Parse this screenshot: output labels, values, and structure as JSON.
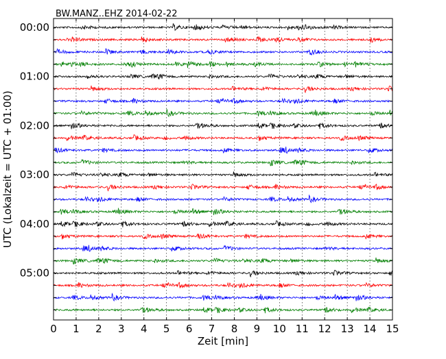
{
  "chart_data": {
    "type": "line",
    "title": "BW.MANZ..EHZ 2014-02-22",
    "xlabel": "Zeit  [min]",
    "ylabel": "UTC (Lokalzeit = UTC + 01:00)",
    "xlim": [
      0,
      15
    ],
    "x_ticks": [
      0,
      1,
      2,
      3,
      4,
      5,
      6,
      7,
      8,
      9,
      10,
      11,
      12,
      13,
      14,
      15
    ],
    "x_tick_labels": [
      "0",
      "1",
      "2",
      "3",
      "4",
      "5",
      "6",
      "7",
      "8",
      "9",
      "10",
      "11",
      "12",
      "13",
      "14",
      "15"
    ],
    "y_tick_labels": [
      "00:00",
      "01:00",
      "02:00",
      "03:00",
      "04:00",
      "05:00"
    ],
    "minutes_per_trace": 15,
    "trace_count": 24,
    "trace_colors": [
      "#000000",
      "#ff0000",
      "#0000ff",
      "#007f00"
    ],
    "grid": "vertical dotted at each minute",
    "legend": "none"
  }
}
